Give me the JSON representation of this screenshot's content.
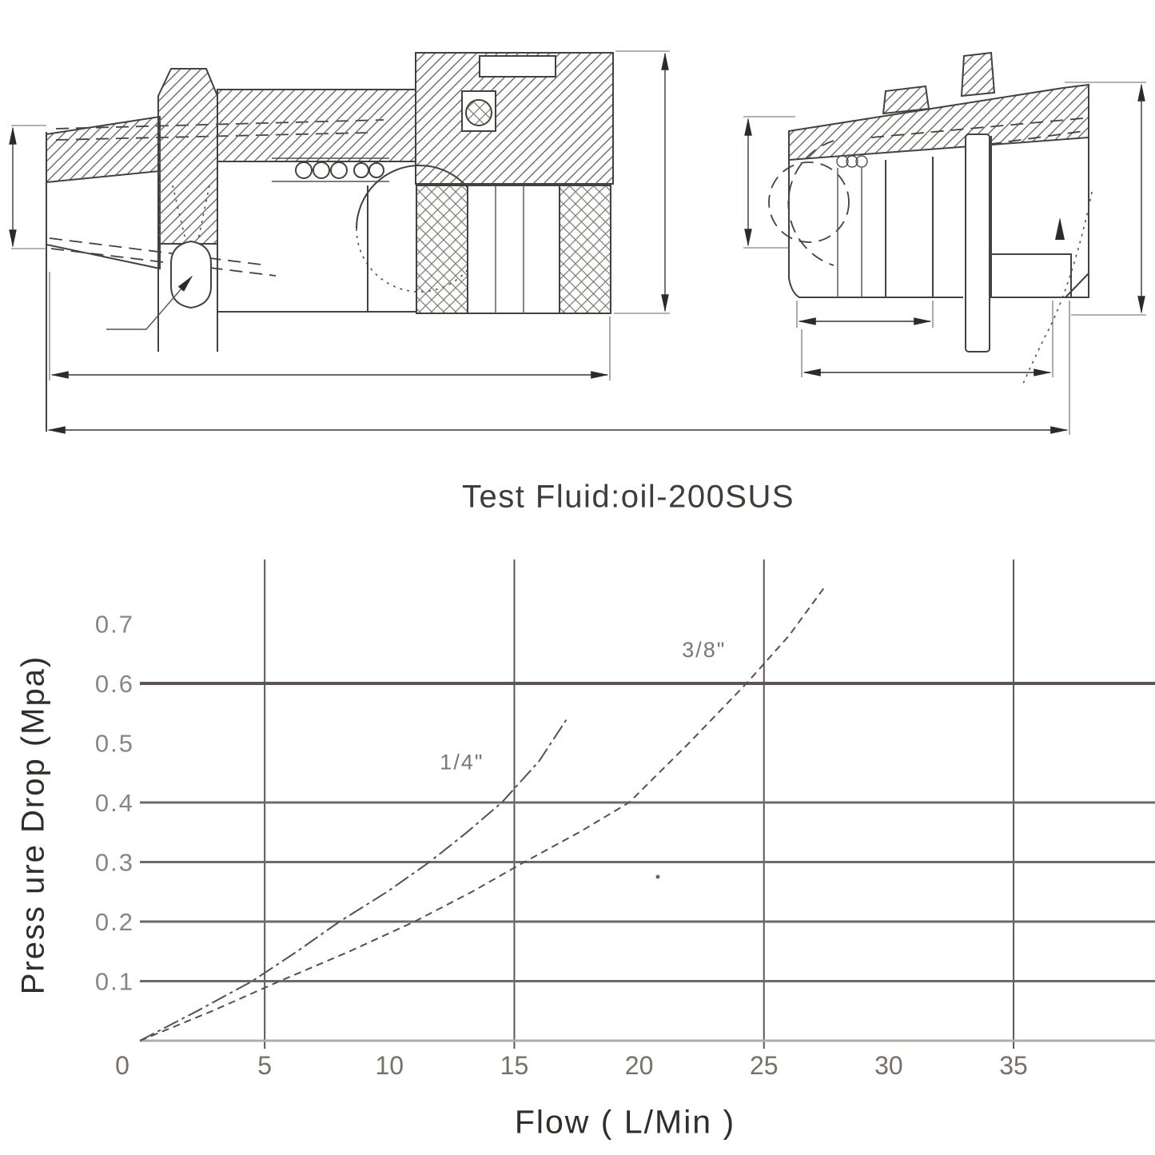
{
  "title": {
    "text": "Test Fluid:oil-200SUS"
  },
  "colors": {
    "ink": "#45413f",
    "grid": "#6f6a67",
    "grid_dark": "#5c5755",
    "grid_bold": "#5a5553",
    "axis": "#b3acaa",
    "curve": "#56504e",
    "tick_text": "#767069",
    "faded_text": "#8b8582"
  },
  "chart_data": {
    "type": "line",
    "title": "Test Fluid:oil-200SUS",
    "xlabel": "Flow ( L/Min )",
    "ylabel": "Press ure Drop (Mpa)",
    "xlim": [
      0,
      40.6
    ],
    "ylim": [
      0,
      0.81
    ],
    "grid": "partial",
    "x_ticks": [
      0,
      5,
      10,
      15,
      20,
      25,
      30,
      35
    ],
    "y_ticks": [
      0.1,
      0.2,
      0.3,
      0.4,
      0.5,
      0.6,
      0.7
    ],
    "x_gridlines": [
      5,
      15,
      25,
      35
    ],
    "y_gridlines": [
      0.1,
      0.2,
      0.3,
      0.4,
      0.6
    ],
    "legend_position": "inline-labels",
    "series": [
      {
        "name": "1/4\"",
        "key": "curve-quarter-inch",
        "style": "dashdot",
        "points": [
          [
            0,
            0
          ],
          [
            2.3,
            0.05
          ],
          [
            4.5,
            0.1
          ],
          [
            6.3,
            0.15
          ],
          [
            8.0,
            0.2
          ],
          [
            9.9,
            0.25
          ],
          [
            11.6,
            0.3
          ],
          [
            13.1,
            0.35
          ],
          [
            14.5,
            0.4
          ],
          [
            16.0,
            0.47
          ],
          [
            17.1,
            0.54
          ]
        ],
        "label_at": [
          12.9,
          0.456
        ]
      },
      {
        "name": "3/8\"",
        "key": "curve-three-eighths-inch",
        "style": "dashed",
        "points": [
          [
            0,
            0
          ],
          [
            2.9,
            0.05
          ],
          [
            5.6,
            0.1
          ],
          [
            8.4,
            0.15
          ],
          [
            11.0,
            0.2
          ],
          [
            13.3,
            0.25
          ],
          [
            15.4,
            0.3
          ],
          [
            17.6,
            0.35
          ],
          [
            19.6,
            0.4
          ],
          [
            22.0,
            0.5
          ],
          [
            24.3,
            0.6
          ],
          [
            26.0,
            0.68
          ],
          [
            27.4,
            0.76
          ]
        ],
        "label_at": [
          22.6,
          0.644
        ]
      }
    ]
  }
}
